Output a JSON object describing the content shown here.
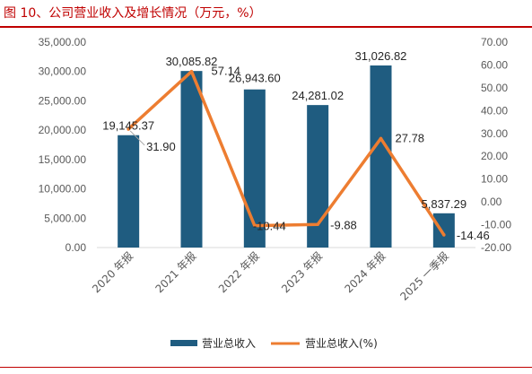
{
  "page": {
    "title": "图 10、公司营业收入及增长情况（万元，%）"
  },
  "colors": {
    "accent": "#c00000",
    "bar": "#1f5c80",
    "line": "#ed7d31"
  },
  "chart_data": {
    "type": "bar",
    "title": "",
    "categories": [
      "2020 年报",
      "2021 年报",
      "2022 年报",
      "2023 年报",
      "2024 年报",
      "2025 一季报"
    ],
    "series": [
      {
        "name": "营业总收入",
        "type": "bar",
        "axis": "left",
        "values": [
          19145.37,
          30085.82,
          26943.6,
          24281.02,
          31026.82,
          5837.29
        ],
        "labels": [
          "19,145.37",
          "30,085.82",
          "26,943.60",
          "24,281.02",
          "31,026.82",
          "5,837.29"
        ]
      },
      {
        "name": "营业总收入(%)",
        "type": "line",
        "axis": "right",
        "values": [
          31.9,
          57.14,
          -10.44,
          -9.88,
          27.78,
          -14.46
        ],
        "labels": [
          "31.90",
          "57.14",
          "-10.44",
          "-9.88",
          "27.78",
          "-14.46"
        ]
      }
    ],
    "left_axis": {
      "ylim": [
        0,
        35000
      ],
      "ticks": [
        "0.00",
        "5,000.00",
        "10,000.00",
        "15,000.00",
        "20,000.00",
        "25,000.00",
        "30,000.00",
        "35,000.00"
      ]
    },
    "right_axis": {
      "ylim": [
        -20,
        70
      ],
      "ticks": [
        "-20.00",
        "-10.00",
        "0.00",
        "10.00",
        "20.00",
        "30.00",
        "40.00",
        "50.00",
        "60.00",
        "70.00"
      ]
    },
    "legend": "bottom",
    "grid": false
  }
}
